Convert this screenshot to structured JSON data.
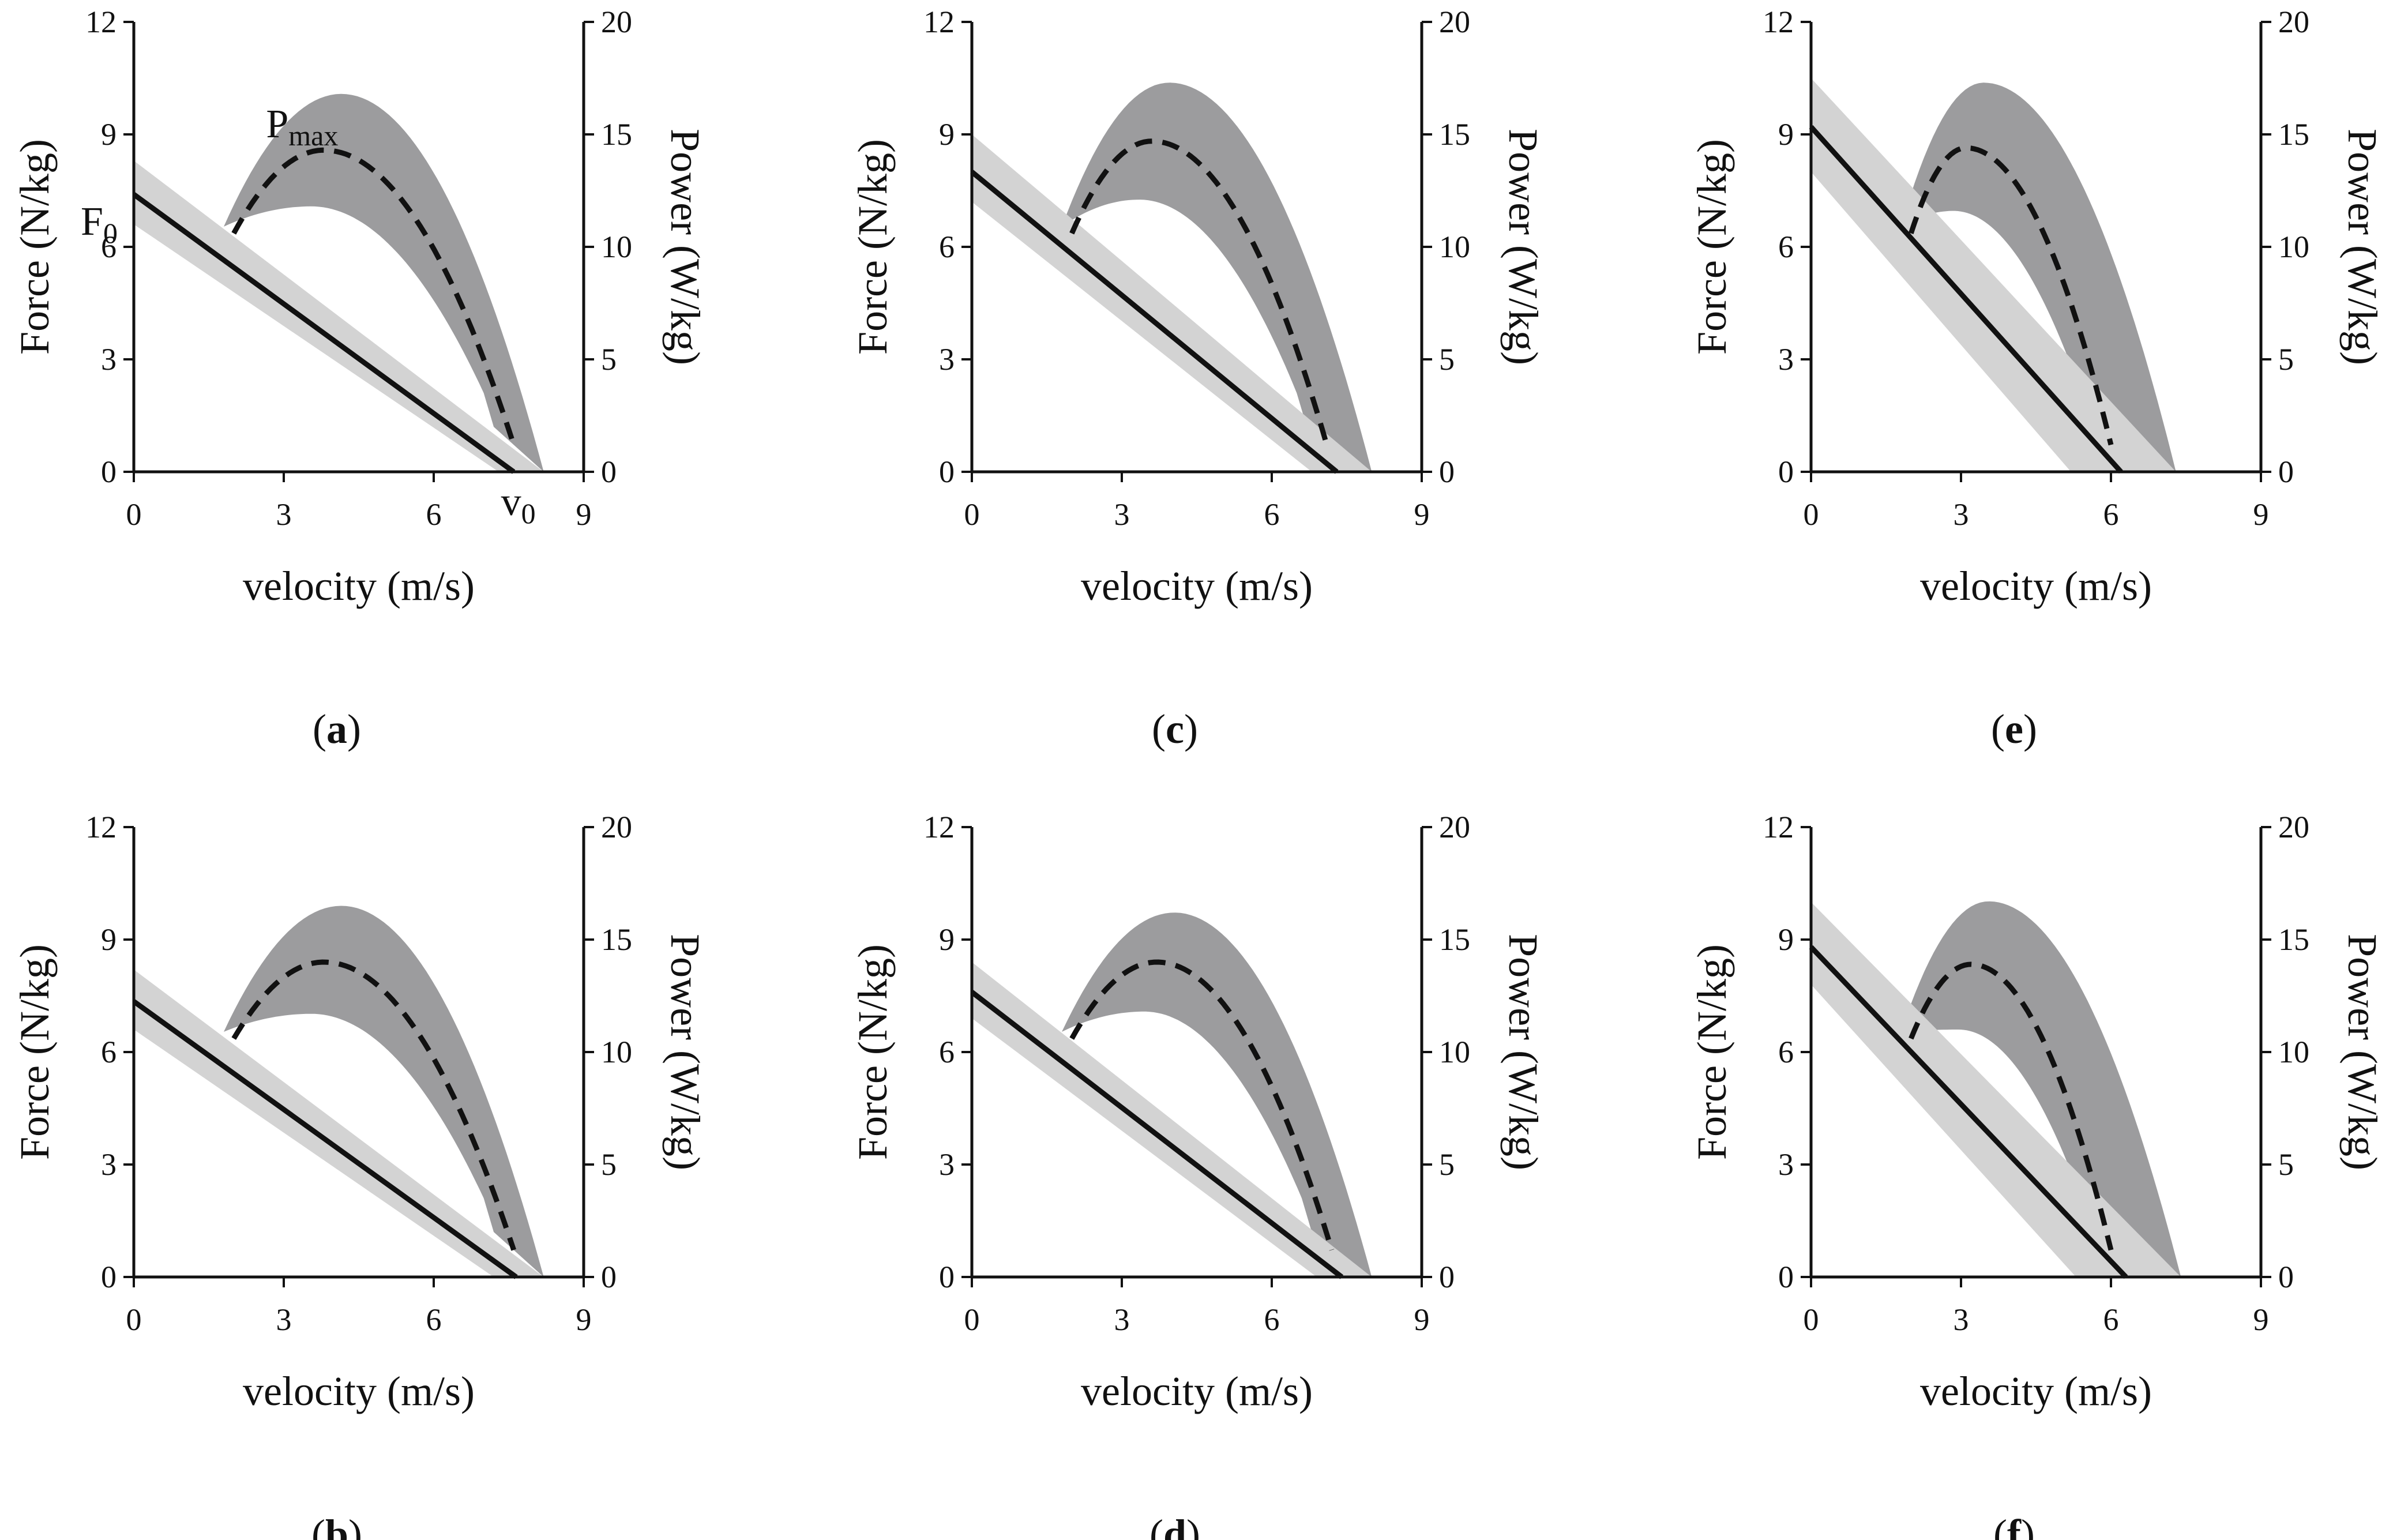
{
  "figure": {
    "axis_labels": {
      "x": "velocity (m/s)",
      "y_left": "Force (N/kg)",
      "y_right": "Power (W/kg)"
    },
    "annotations": {
      "force_intercept": {
        "main": "F",
        "sub": "0"
      },
      "velocity_intercept": {
        "main": "v",
        "sub": "0"
      },
      "peak_power": {
        "main": "P",
        "sub": "max"
      }
    },
    "colors": {
      "force_band": "#d3d3d3",
      "power_band": "#9c9c9e",
      "lines": "#111111",
      "axes": "#111111"
    }
  },
  "chart_data": [
    {
      "type": "line",
      "panel_label": "a",
      "xlabel": "velocity (m/s)",
      "ylabel_left": "Force (N/kg)",
      "ylabel_right": "Power (W/kg)",
      "xlim": [
        0,
        9
      ],
      "ylim_left": [
        0,
        12
      ],
      "ylim_right": [
        0,
        20
      ],
      "x_ticks": [
        0,
        3,
        6,
        9
      ],
      "y_left_ticks": [
        0,
        3,
        6,
        9,
        12
      ],
      "y_right_ticks": [
        0,
        5,
        10,
        15,
        20
      ],
      "force_velocity": {
        "F0": 7.4,
        "v0": 7.6,
        "band_F0": [
          6.6,
          8.3
        ],
        "band_v0": [
          7.3,
          8.2
        ]
      },
      "power_velocity": {
        "x_range": [
          2.0,
          7.6
        ],
        "Pmax": 14.3,
        "v_at_Pmax": 3.8,
        "band_x_range": [
          1.8,
          8.2
        ],
        "band_upper_max": 16.8,
        "band_lower_max": 11.8
      },
      "annotated": true
    },
    {
      "type": "line",
      "panel_label": "b",
      "xlabel": "velocity (m/s)",
      "ylabel_left": "Force (N/kg)",
      "ylabel_right": "Power (W/kg)",
      "xlim": [
        0,
        9
      ],
      "ylim_left": [
        0,
        12
      ],
      "ylim_right": [
        0,
        20
      ],
      "x_ticks": [
        0,
        3,
        6,
        9
      ],
      "y_left_ticks": [
        0,
        3,
        6,
        9,
        12
      ],
      "y_right_ticks": [
        0,
        5,
        10,
        15,
        20
      ],
      "force_velocity": {
        "F0": 7.35,
        "v0": 7.65,
        "band_F0": [
          6.6,
          8.2
        ],
        "band_v0": [
          7.2,
          8.2
        ]
      },
      "power_velocity": {
        "x_range": [
          2.0,
          7.6
        ],
        "Pmax": 14.0,
        "v_at_Pmax": 3.8,
        "band_x_range": [
          1.8,
          8.2
        ],
        "band_upper_max": 16.5,
        "band_lower_max": 11.7
      },
      "annotated": false
    },
    {
      "type": "line",
      "panel_label": "c",
      "xlabel": "velocity (m/s)",
      "ylabel_left": "Force (N/kg)",
      "ylabel_right": "Power (W/kg)",
      "xlim": [
        0,
        9
      ],
      "ylim_left": [
        0,
        12
      ],
      "ylim_right": [
        0,
        20
      ],
      "x_ticks": [
        0,
        3,
        6,
        9
      ],
      "y_left_ticks": [
        0,
        3,
        6,
        9,
        12
      ],
      "y_right_ticks": [
        0,
        5,
        10,
        15,
        20
      ],
      "force_velocity": {
        "F0": 8.0,
        "v0": 7.3,
        "band_F0": [
          7.2,
          9.0
        ],
        "band_v0": [
          6.8,
          8.0
        ]
      },
      "power_velocity": {
        "x_range": [
          2.0,
          7.1
        ],
        "Pmax": 14.7,
        "v_at_Pmax": 3.6,
        "band_x_range": [
          1.8,
          8.0
        ],
        "band_upper_max": 17.3,
        "band_lower_max": 12.1
      },
      "annotated": false
    },
    {
      "type": "line",
      "panel_label": "d",
      "xlabel": "velocity (m/s)",
      "ylabel_left": "Force (N/kg)",
      "ylabel_right": "Power (W/kg)",
      "xlim": [
        0,
        9
      ],
      "ylim_left": [
        0,
        12
      ],
      "ylim_right": [
        0,
        20
      ],
      "x_ticks": [
        0,
        3,
        6,
        9
      ],
      "y_left_ticks": [
        0,
        3,
        6,
        9,
        12
      ],
      "y_right_ticks": [
        0,
        5,
        10,
        15,
        20
      ],
      "force_velocity": {
        "F0": 7.6,
        "v0": 7.4,
        "band_F0": [
          6.9,
          8.4
        ],
        "band_v0": [
          6.9,
          8.0
        ]
      },
      "power_velocity": {
        "x_range": [
          2.0,
          7.2
        ],
        "Pmax": 14.0,
        "v_at_Pmax": 3.7,
        "band_x_range": [
          1.8,
          8.0
        ],
        "band_upper_max": 16.2,
        "band_lower_max": 11.8
      },
      "annotated": false
    },
    {
      "type": "line",
      "panel_label": "e",
      "xlabel": "velocity (m/s)",
      "ylabel_left": "Force (N/kg)",
      "ylabel_right": "Power (W/kg)",
      "xlim": [
        0,
        9
      ],
      "ylim_left": [
        0,
        12
      ],
      "ylim_right": [
        0,
        20
      ],
      "x_ticks": [
        0,
        3,
        6,
        9
      ],
      "y_left_ticks": [
        0,
        3,
        6,
        9,
        12
      ],
      "y_right_ticks": [
        0,
        5,
        10,
        15,
        20
      ],
      "force_velocity": {
        "F0": 9.2,
        "v0": 6.2,
        "band_F0": [
          8.0,
          10.5
        ],
        "band_v0": [
          5.2,
          7.3
        ]
      },
      "power_velocity": {
        "x_range": [
          2.0,
          6.0
        ],
        "Pmax": 14.4,
        "v_at_Pmax": 3.1,
        "band_x_range": [
          1.8,
          7.3
        ],
        "band_upper_max": 17.3,
        "band_lower_max": 11.6
      },
      "annotated": false
    },
    {
      "type": "line",
      "panel_label": "f",
      "xlabel": "velocity (m/s)",
      "ylabel_left": "Force (N/kg)",
      "ylabel_right": "Power (W/kg)",
      "xlim": [
        0,
        9
      ],
      "ylim_left": [
        0,
        12
      ],
      "ylim_right": [
        0,
        20
      ],
      "x_ticks": [
        0,
        3,
        6,
        9
      ],
      "y_left_ticks": [
        0,
        3,
        6,
        9,
        12
      ],
      "y_right_ticks": [
        0,
        5,
        10,
        15,
        20
      ],
      "force_velocity": {
        "F0": 8.8,
        "v0": 6.3,
        "band_F0": [
          7.8,
          10.0
        ],
        "band_v0": [
          5.3,
          7.4
        ]
      },
      "power_velocity": {
        "x_range": [
          2.0,
          6.0
        ],
        "Pmax": 13.9,
        "v_at_Pmax": 3.2,
        "band_x_range": [
          1.8,
          7.4
        ],
        "band_upper_max": 16.7,
        "band_lower_max": 11.0
      },
      "annotated": false
    }
  ]
}
